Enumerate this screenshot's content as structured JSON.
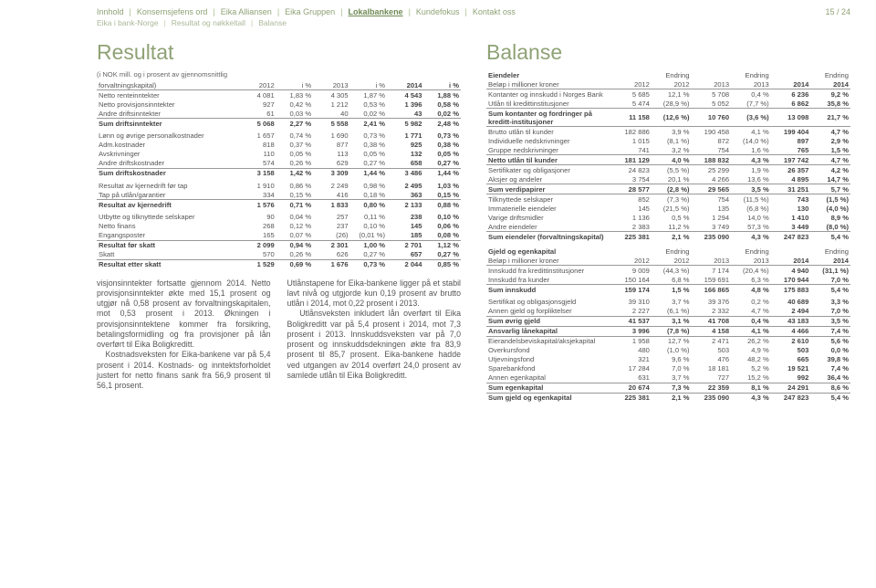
{
  "header": {
    "crumbs": [
      "Innhold",
      "Konsernsjefens ord",
      "Eika Alliansen",
      "Eika Gruppen",
      "Lokalbankene",
      "Kundefokus",
      "Kontakt oss"
    ],
    "activeIndex": 4,
    "subcrumbs": [
      "Eika i bank-Norge",
      "Resultat og nøkkeltall",
      "Balanse"
    ],
    "pageno": "15 / 24"
  },
  "left": {
    "title": "Resultat",
    "note1": "(i NOK mill. og i prosent av gjennomsnittlig",
    "note2": "forvaltningskapital)",
    "headers": [
      "",
      "2012",
      "i %",
      "2013",
      "i %",
      "2014",
      "i %"
    ],
    "rows": [
      {
        "c": [
          "Netto renteinntekter",
          "4 081",
          "1,83 %",
          "4 305",
          "1,87 %",
          "4 543",
          "1,88 %"
        ]
      },
      {
        "c": [
          "Netto provisjonsinntekter",
          "927",
          "0,42 %",
          "1 212",
          "0,53 %",
          "1 396",
          "0,58 %"
        ]
      },
      {
        "c": [
          "Andre driftsinntekter",
          "61",
          "0,03 %",
          "40",
          "0,02 %",
          "43",
          "0,02 %"
        ]
      },
      {
        "c": [
          "Sum driftsinntekter",
          "5 068",
          "2,27 %",
          "5 558",
          "2,41 %",
          "5 982",
          "2,48 %"
        ],
        "line": true,
        "bold": true
      },
      {
        "c": [
          "Lønn og øvrige personalkostnader",
          "1 657",
          "0,74 %",
          "1 690",
          "0,73 %",
          "1 771",
          "0,73 %"
        ],
        "sect": true
      },
      {
        "c": [
          "Adm.kostnader",
          "818",
          "0,37 %",
          "877",
          "0,38 %",
          "925",
          "0,38 %"
        ]
      },
      {
        "c": [
          "Avskrivninger",
          "110",
          "0,05 %",
          "113",
          "0,05 %",
          "132",
          "0,05 %"
        ]
      },
      {
        "c": [
          "Andre driftskostnader",
          "574",
          "0,26 %",
          "629",
          "0,27 %",
          "658",
          "0,27 %"
        ]
      },
      {
        "c": [
          "Sum driftskostnader",
          "3 158",
          "1,42 %",
          "3 309",
          "1,44 %",
          "3 486",
          "1,44 %"
        ],
        "line": true,
        "bold": true
      },
      {
        "c": [
          "Resultat av kjernedrift før tap",
          "1 910",
          "0,86 %",
          "2 249",
          "0,98 %",
          "2 495",
          "1,03 %"
        ],
        "sect": true
      },
      {
        "c": [
          "Tap på utlån/garantier",
          "334",
          "0,15 %",
          "416",
          "0,18 %",
          "363",
          "0,15 %"
        ]
      },
      {
        "c": [
          "Resultat av kjernedrift",
          "1 576",
          "0,71 %",
          "1 833",
          "0,80 %",
          "2 133",
          "0,88 %"
        ],
        "line": true,
        "bold": true
      },
      {
        "c": [
          "Utbytte og tilknyttede selskaper",
          "90",
          "0,04 %",
          "257",
          "0,11 %",
          "238",
          "0,10 %"
        ],
        "sect": true
      },
      {
        "c": [
          "Netto finans",
          "268",
          "0,12 %",
          "237",
          "0,10 %",
          "145",
          "0,06 %"
        ]
      },
      {
        "c": [
          "Engangsposter",
          "165",
          "0,07 %",
          "(26)",
          "(0,01 %)",
          "185",
          "0,08 %"
        ]
      },
      {
        "c": [
          "Resultat før skatt",
          "2 099",
          "0,94 %",
          "2 301",
          "1,00 %",
          "2 701",
          "1,12 %"
        ],
        "line": true,
        "bold": true
      },
      {
        "c": [
          "Skatt",
          "570",
          "0,26 %",
          "626",
          "0,27 %",
          "657",
          "0,27 %"
        ]
      },
      {
        "c": [
          "Resultat etter skatt",
          "1 529",
          "0,69 %",
          "1 676",
          "0,73 %",
          "2 044",
          "0,85 %"
        ],
        "line": true,
        "bold": true
      }
    ],
    "para1": "visjonsinntekter fortsatte gjennom 2014. Netto provisjonsinntekter økte med 15,1 prosent og utgjør nå 0,58 prosent av forvaltningskapitalen, mot 0,53 prosent i 2013. Økningen i provisjonsinntektene kommer fra forsikring, betalingsformidling og fra provisjoner på lån overført til Eika Boligkreditt.",
    "para1b": "Kostnadsveksten for Eika-bankene var på 5,4 prosent i 2014. Kostnads- og inntektsforholdet justert for netto finans sank fra 56,9 prosent til 56,1 prosent.",
    "para2": "Utlånstapene for Eika-bankene ligger på et stabil lavt nivå og utgjorde kun 0,19 prosent av brutto utlån i 2014, mot 0,22 prosent i 2013.",
    "para2b": "Utlånsveksten inkludert lån overført til Eika Boligkreditt var på 5,4 prosent i 2014, mot 7,3 prosent i 2013. Innskuddsveksten var på 7,0 prosent og innskuddsdekningen økte fra 83,9 prosent til 85,7 prosent. Eika-bankene hadde ved utgangen av 2014 overført 24,0 prosent av samlede utlån til Eika Boligkreditt."
  },
  "right": {
    "title": "Balanse",
    "sub1": "Eiendeler",
    "sub1note": "Beløp i millioner kroner",
    "headers": [
      "",
      "2012",
      "Endring 2012",
      "2013",
      "Endring 2013",
      "2014",
      "Endring 2014"
    ],
    "headersTop": [
      "",
      "",
      "Endring",
      "",
      "Endring",
      "",
      "Endring"
    ],
    "headersBot": [
      "",
      "2012",
      "2012",
      "2013",
      "2013",
      "2014",
      "2014"
    ],
    "rows1": [
      {
        "c": [
          "Kontanter og innskudd i Norges Bank",
          "5 685",
          "12,1 %",
          "5 708",
          "0,4 %",
          "6 236",
          "9,2 %"
        ]
      },
      {
        "c": [
          "Utlån til kredittinstitusjoner",
          "5 474",
          "(28,9 %)",
          "5 052",
          "(7,7 %)",
          "6 862",
          "35,8 %"
        ]
      },
      {
        "c": [
          "Sum kontanter og fordringer på kreditt-institusjoner",
          "11 158",
          "(12,6 %)",
          "10 760",
          "(3,6 %)",
          "13 098",
          "21,7 %"
        ],
        "line": true,
        "bold": true
      },
      {
        "c": [
          "Brutto utlån til kunder",
          "182 886",
          "3,9 %",
          "190 458",
          "4,1 %",
          "199 404",
          "4,7 %"
        ],
        "line": true
      },
      {
        "c": [
          "Individuelle nedskrivninger",
          "1 015",
          "(8,1 %)",
          "872",
          "(14,0 %)",
          "897",
          "2,9 %"
        ]
      },
      {
        "c": [
          "Gruppe nedskrivninger",
          "741",
          "3,2 %",
          "754",
          "1,6 %",
          "765",
          "1,5 %"
        ]
      },
      {
        "c": [
          "Netto utlån til kunder",
          "181 129",
          "4,0 %",
          "188 832",
          "4,3 %",
          "197 742",
          "4,7 %"
        ],
        "line": true,
        "bold": true
      },
      {
        "c": [
          "Sertifikater og obligasjoner",
          "24 823",
          "(5,5 %)",
          "25 299",
          "1,9 %",
          "26 357",
          "4,2 %"
        ],
        "line": true
      },
      {
        "c": [
          "Aksjer og andeler",
          "3 754",
          "20,1 %",
          "4 266",
          "13,6 %",
          "4 895",
          "14,7 %"
        ]
      },
      {
        "c": [
          "Sum verdipapirer",
          "28 577",
          "(2,8 %)",
          "29 565",
          "3,5 %",
          "31 251",
          "5,7 %"
        ],
        "line": true,
        "bold": true
      },
      {
        "c": [
          "Tilknyttede selskaper",
          "852",
          "(7,3 %)",
          "754",
          "(11,5 %)",
          "743",
          "(1,5 %)"
        ],
        "line": true
      },
      {
        "c": [
          "Immaterielle eiendeler",
          "145",
          "(21,5 %)",
          "135",
          "(6,8 %)",
          "130",
          "(4,0 %)"
        ]
      },
      {
        "c": [
          "Varige driftsmidler",
          "1 136",
          "0,5 %",
          "1 294",
          "14,0 %",
          "1 410",
          "8,9 %"
        ]
      },
      {
        "c": [
          "Andre eiendeler",
          "2 383",
          "11,2 %",
          "3 749",
          "57,3 %",
          "3 449",
          "(8,0 %)"
        ]
      },
      {
        "c": [
          "Sum eiendeler (forvaltningskapital)",
          "225 381",
          "2,1 %",
          "235 090",
          "4,3 %",
          "247 823",
          "5,4 %"
        ],
        "line": true,
        "bold": true
      }
    ],
    "sub2": "Gjeld og egenkapital",
    "sub2note": "Beløp i millioner kroner",
    "rows2": [
      {
        "c": [
          "Innskudd fra kredittinstitusjoner",
          "9 009",
          "(44,3 %)",
          "7 174",
          "(20,4 %)",
          "4 940",
          "(31,1 %)"
        ]
      },
      {
        "c": [
          "Innskudd fra kunder",
          "150 164",
          "6,8 %",
          "159 691",
          "6,3 %",
          "170 944",
          "7,0 %"
        ]
      },
      {
        "c": [
          "Sum innskudd",
          "159 174",
          "1,5 %",
          "166 865",
          "4,8 %",
          "175 883",
          "5,4 %"
        ],
        "line": true,
        "bold": true
      },
      {
        "c": [
          "Sertifikat og obligasjonsgjeld",
          "39 310",
          "3,7 %",
          "39 376",
          "0,2 %",
          "40 689",
          "3,3 %"
        ],
        "sect": true
      },
      {
        "c": [
          "Annen gjeld og forpliktelser",
          "2 227",
          "(6,1 %)",
          "2 332",
          "4,7 %",
          "2 494",
          "7,0 %"
        ]
      },
      {
        "c": [
          "Sum øvrig gjeld",
          "41 537",
          "3,1 %",
          "41 708",
          "0,4 %",
          "43 183",
          "3,5 %"
        ],
        "line": true,
        "bold": true
      },
      {
        "c": [
          "Ansvarlig lånekapital",
          "3 996",
          "(7,8 %)",
          "4 158",
          "4,1 %",
          "4 466",
          "7,4 %"
        ],
        "line": true,
        "bold": true
      },
      {
        "c": [
          "Eierandelsbeviskapital/aksjekapital",
          "1 958",
          "12,7 %",
          "2 471",
          "26,2 %",
          "2 610",
          "5,6 %"
        ],
        "line": true
      },
      {
        "c": [
          "Overkursfond",
          "480",
          "(1,0 %)",
          "503",
          "4,9 %",
          "503",
          "0,0 %"
        ]
      },
      {
        "c": [
          "Utjevningsfond",
          "321",
          "9,6 %",
          "476",
          "48,2 %",
          "665",
          "39,8 %"
        ]
      },
      {
        "c": [
          "Sparebankfond",
          "17 284",
          "7,0 %",
          "18 181",
          "5,2 %",
          "19 521",
          "7,4 %"
        ]
      },
      {
        "c": [
          "Annen egenkapital",
          "631",
          "3,7 %",
          "727",
          "15,2 %",
          "992",
          "36,4 %"
        ]
      },
      {
        "c": [
          "Sum egenkapital",
          "20 674",
          "7,3 %",
          "22 359",
          "8,1 %",
          "24 291",
          "8,6 %"
        ],
        "line": true,
        "bold": true
      },
      {
        "c": [
          "Sum gjeld og egenkapital",
          "225 381",
          "2,1 %",
          "235 090",
          "4,3 %",
          "247 823",
          "5,4 %"
        ],
        "line": true,
        "bold": true
      }
    ]
  }
}
